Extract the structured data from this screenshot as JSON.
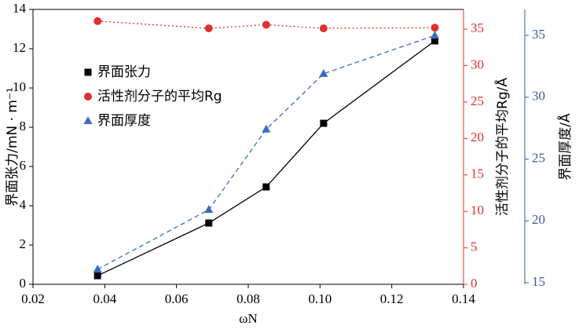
{
  "chart_data": {
    "type": "line",
    "x": [
      0.038,
      0.069,
      0.085,
      0.101,
      0.132
    ],
    "xlim": [
      0.02,
      0.14
    ],
    "xticks": [
      {
        "value": 0.02,
        "label": "0.02"
      },
      {
        "value": 0.04,
        "label": "0.04"
      },
      {
        "value": 0.06,
        "label": "0.06"
      },
      {
        "value": 0.08,
        "label": "0.08"
      },
      {
        "value": 0.1,
        "label": "0.10"
      },
      {
        "value": 0.12,
        "label": "0.12"
      },
      {
        "value": 0.14,
        "label": "0.14"
      }
    ],
    "xlabel": "ωN",
    "ylabel": "界面张力/mN · m⁻¹",
    "ylim": [
      0,
      14
    ],
    "yticks": [
      0,
      2,
      4,
      6,
      8,
      10,
      12,
      14
    ],
    "y2label": "活性剂分子的平均Rg/Å",
    "y2lim": [
      0,
      37.7
    ],
    "y2ticks": [
      0,
      5,
      10,
      15,
      20,
      25,
      30,
      35
    ],
    "y2color": "#e03030",
    "y3label": "界面厚度/Å",
    "y3lim": [
      14.87,
      37.1
    ],
    "y3ticks": [
      15,
      20,
      25,
      30,
      35
    ],
    "y3color": "#3a5a9c",
    "series": [
      {
        "name": "界面张力",
        "color": "#000000",
        "axis": "y",
        "marker": "square",
        "linestyle": "solid",
        "values": [
          0.44,
          3.12,
          4.96,
          8.2,
          12.4
        ]
      },
      {
        "name": "活性剂分子的平均Rg",
        "color": "#e03030",
        "axis": "y2",
        "marker": "circle",
        "linestyle": "dotted",
        "values": [
          36.1,
          35.1,
          35.6,
          35.1,
          35.2
        ]
      },
      {
        "name": "界面厚度",
        "color": "#3a6cc0",
        "axis": "y3",
        "marker": "triangle",
        "linestyle": "dashed",
        "values": [
          16.08,
          20.9,
          27.4,
          31.9,
          35.0
        ]
      }
    ]
  }
}
